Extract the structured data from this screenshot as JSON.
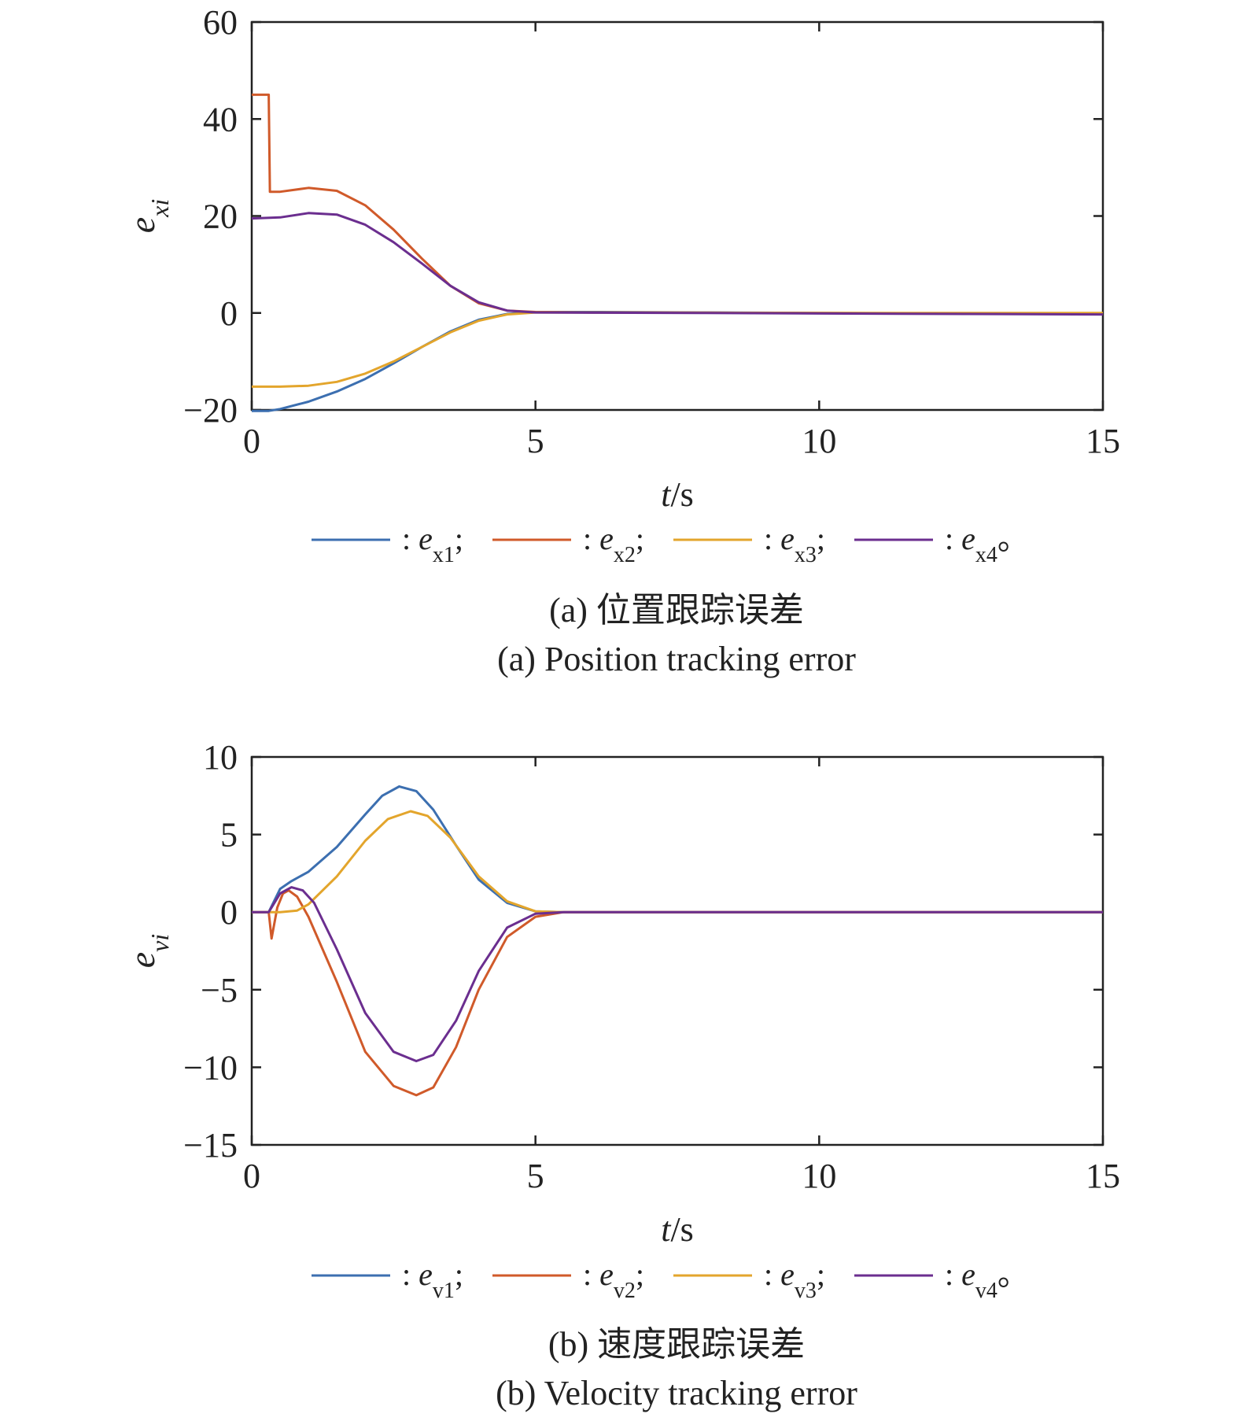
{
  "chart_data": [
    {
      "type": "line",
      "caption_cn": "(a) 位置跟踪误差",
      "caption_en": "(a) Position tracking error",
      "ylabel": {
        "base": "e",
        "sub": "xi"
      },
      "xlabel": {
        "italic": "t",
        "rest": "/s"
      },
      "xlim": [
        0,
        15
      ],
      "ylim": [
        -20,
        60
      ],
      "xticks": [
        0,
        5,
        10,
        15
      ],
      "yticks": [
        -20,
        0,
        20,
        40,
        60
      ],
      "ytick_labels": [
        "−20",
        "0",
        "20",
        "40",
        "60"
      ],
      "grid": false,
      "legend_position": "bottom",
      "series": [
        {
          "name": ": e_x1;",
          "legend_base": ": e",
          "legend_sub": "x1",
          "legend_end": ";",
          "color": "#3c6fb0",
          "x": [
            0,
            0.3,
            0.5,
            1,
            1.5,
            2,
            2.5,
            3,
            3.5,
            4,
            4.5,
            5,
            6,
            8,
            10,
            15
          ],
          "y": [
            -20.2,
            -20.2,
            -19.8,
            -18.3,
            -16.2,
            -13.6,
            -10.4,
            -7.0,
            -3.8,
            -1.4,
            -0.2,
            0.2,
            0.2,
            0.1,
            0,
            -0.1
          ]
        },
        {
          "name": ": e_x2;",
          "legend_base": ": e",
          "legend_sub": "x2",
          "legend_end": ";",
          "color": "#d05a2a",
          "x": [
            0,
            0.3,
            0.32,
            0.5,
            1,
            1.5,
            2,
            2.5,
            3,
            3.5,
            4,
            4.5,
            5,
            6,
            8,
            10,
            15
          ],
          "y": [
            45,
            45,
            25,
            25,
            25.8,
            25.2,
            22.2,
            17.2,
            11.2,
            5.6,
            2.0,
            0.5,
            0.2,
            0.1,
            0.05,
            0,
            -0.2
          ]
        },
        {
          "name": ": e_x3;",
          "legend_base": ": e",
          "legend_sub": "x3",
          "legend_end": ";",
          "color": "#e3a52c",
          "x": [
            0,
            0.5,
            1,
            1.5,
            2,
            2.5,
            3,
            3.5,
            4,
            4.5,
            5,
            6,
            8,
            10,
            15
          ],
          "y": [
            -15.2,
            -15.2,
            -15.0,
            -14.2,
            -12.5,
            -10.0,
            -7.0,
            -4.0,
            -1.6,
            -0.3,
            0.1,
            0.1,
            0.05,
            0,
            0
          ]
        },
        {
          "name": ": e_x4。",
          "legend_base": ": e",
          "legend_sub": "x4",
          "legend_end": "。",
          "color": "#6b2e8f",
          "x": [
            0,
            0.5,
            1,
            1.5,
            2,
            2.5,
            3,
            3.5,
            4,
            4.5,
            5,
            6,
            8,
            10,
            15
          ],
          "y": [
            19.5,
            19.7,
            20.6,
            20.3,
            18.2,
            14.6,
            10.2,
            5.6,
            2.2,
            0.5,
            0.1,
            0.05,
            0,
            -0.1,
            -0.3
          ]
        }
      ]
    },
    {
      "type": "line",
      "caption_cn": "(b) 速度跟踪误差",
      "caption_en": "(b) Velocity tracking error",
      "ylabel": {
        "base": "e",
        "sub": "vi"
      },
      "xlabel": {
        "italic": "t",
        "rest": "/s"
      },
      "xlim": [
        0,
        15
      ],
      "ylim": [
        -15,
        10
      ],
      "xticks": [
        0,
        5,
        10,
        15
      ],
      "yticks": [
        -15,
        -10,
        -5,
        0,
        5,
        10
      ],
      "ytick_labels": [
        "−15",
        "−10",
        "−5",
        "0",
        "5",
        "10"
      ],
      "grid": false,
      "legend_position": "bottom",
      "series": [
        {
          "name": ": e_v1;",
          "legend_base": ": e",
          "legend_sub": "v1",
          "legend_end": ";",
          "color": "#3c6fb0",
          "x": [
            0,
            0.3,
            0.5,
            0.7,
            1,
            1.5,
            2,
            2.3,
            2.6,
            2.9,
            3.2,
            3.6,
            4,
            4.5,
            5,
            5.5,
            6,
            8,
            10,
            15
          ],
          "y": [
            0,
            0,
            1.5,
            2.0,
            2.6,
            4.2,
            6.3,
            7.5,
            8.1,
            7.8,
            6.6,
            4.3,
            2.1,
            0.6,
            0.05,
            0,
            0,
            0,
            0,
            0
          ]
        },
        {
          "name": ": e_v2;",
          "legend_base": ": e",
          "legend_sub": "v2",
          "legend_end": ";",
          "color": "#d05a2a",
          "x": [
            0,
            0.3,
            0.35,
            0.45,
            0.55,
            0.65,
            0.8,
            1,
            1.5,
            2,
            2.5,
            2.9,
            3.2,
            3.6,
            4,
            4.5,
            5,
            5.5,
            6,
            8,
            10,
            15
          ],
          "y": [
            0,
            0,
            -1.7,
            0.3,
            1.2,
            1.4,
            1.0,
            -0.3,
            -4.5,
            -9.0,
            -11.2,
            -11.8,
            -11.3,
            -8.7,
            -5.0,
            -1.6,
            -0.3,
            0,
            0,
            0,
            0,
            0
          ]
        },
        {
          "name": ": e_v3;",
          "legend_base": ": e",
          "legend_sub": "v3",
          "legend_end": ";",
          "color": "#e3a52c",
          "x": [
            0,
            0.3,
            0.5,
            0.8,
            1,
            1.5,
            2,
            2.4,
            2.8,
            3.1,
            3.5,
            4,
            4.5,
            5,
            5.5,
            6,
            8,
            10,
            15
          ],
          "y": [
            0,
            0,
            0,
            0.1,
            0.5,
            2.3,
            4.6,
            6.0,
            6.5,
            6.2,
            4.8,
            2.3,
            0.7,
            0.05,
            0,
            0,
            0,
            0,
            0
          ]
        },
        {
          "name": ": e_v4。",
          "legend_base": ": e",
          "legend_sub": "v4",
          "legend_end": "。",
          "color": "#6b2e8f",
          "x": [
            0,
            0.3,
            0.5,
            0.7,
            0.9,
            1.1,
            1.5,
            2,
            2.5,
            2.9,
            3.2,
            3.6,
            4,
            4.5,
            5,
            5.5,
            6,
            8,
            10,
            15
          ],
          "y": [
            0,
            0,
            1.2,
            1.6,
            1.4,
            0.6,
            -2.4,
            -6.5,
            -9.0,
            -9.6,
            -9.2,
            -7.0,
            -3.8,
            -1.0,
            -0.1,
            0,
            0,
            0,
            0,
            0
          ]
        }
      ]
    }
  ]
}
